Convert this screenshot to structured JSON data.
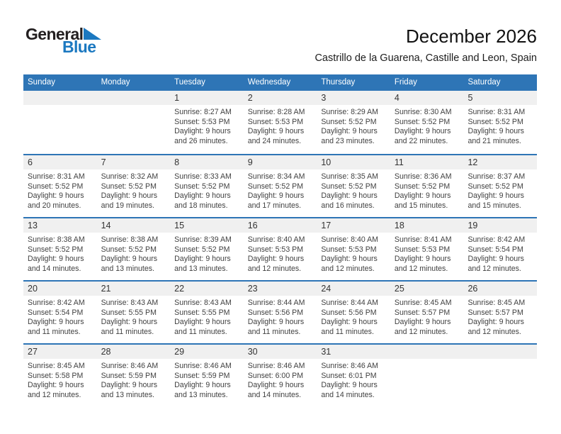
{
  "logo": {
    "part1": "General",
    "part2": "Blue",
    "triangle_color": "#1b78c0"
  },
  "header": {
    "title": "December 2026",
    "subtitle": "Castrillo de la Guarena, Castille and Leon, Spain"
  },
  "colors": {
    "header_bar": "#2e75b6",
    "row_border": "#2e75b6",
    "number_band": "#f0f0f0",
    "text": "#414141"
  },
  "calendar": {
    "weekdays": [
      "Sunday",
      "Monday",
      "Tuesday",
      "Wednesday",
      "Thursday",
      "Friday",
      "Saturday"
    ],
    "weeks": [
      [
        {
          "day": ""
        },
        {
          "day": ""
        },
        {
          "day": "1",
          "sunrise": "Sunrise: 8:27 AM",
          "sunset": "Sunset: 5:53 PM",
          "daylight": "Daylight: 9 hours and 26 minutes."
        },
        {
          "day": "2",
          "sunrise": "Sunrise: 8:28 AM",
          "sunset": "Sunset: 5:53 PM",
          "daylight": "Daylight: 9 hours and 24 minutes."
        },
        {
          "day": "3",
          "sunrise": "Sunrise: 8:29 AM",
          "sunset": "Sunset: 5:52 PM",
          "daylight": "Daylight: 9 hours and 23 minutes."
        },
        {
          "day": "4",
          "sunrise": "Sunrise: 8:30 AM",
          "sunset": "Sunset: 5:52 PM",
          "daylight": "Daylight: 9 hours and 22 minutes."
        },
        {
          "day": "5",
          "sunrise": "Sunrise: 8:31 AM",
          "sunset": "Sunset: 5:52 PM",
          "daylight": "Daylight: 9 hours and 21 minutes."
        }
      ],
      [
        {
          "day": "6",
          "sunrise": "Sunrise: 8:31 AM",
          "sunset": "Sunset: 5:52 PM",
          "daylight": "Daylight: 9 hours and 20 minutes."
        },
        {
          "day": "7",
          "sunrise": "Sunrise: 8:32 AM",
          "sunset": "Sunset: 5:52 PM",
          "daylight": "Daylight: 9 hours and 19 minutes."
        },
        {
          "day": "8",
          "sunrise": "Sunrise: 8:33 AM",
          "sunset": "Sunset: 5:52 PM",
          "daylight": "Daylight: 9 hours and 18 minutes."
        },
        {
          "day": "9",
          "sunrise": "Sunrise: 8:34 AM",
          "sunset": "Sunset: 5:52 PM",
          "daylight": "Daylight: 9 hours and 17 minutes."
        },
        {
          "day": "10",
          "sunrise": "Sunrise: 8:35 AM",
          "sunset": "Sunset: 5:52 PM",
          "daylight": "Daylight: 9 hours and 16 minutes."
        },
        {
          "day": "11",
          "sunrise": "Sunrise: 8:36 AM",
          "sunset": "Sunset: 5:52 PM",
          "daylight": "Daylight: 9 hours and 15 minutes."
        },
        {
          "day": "12",
          "sunrise": "Sunrise: 8:37 AM",
          "sunset": "Sunset: 5:52 PM",
          "daylight": "Daylight: 9 hours and 15 minutes."
        }
      ],
      [
        {
          "day": "13",
          "sunrise": "Sunrise: 8:38 AM",
          "sunset": "Sunset: 5:52 PM",
          "daylight": "Daylight: 9 hours and 14 minutes."
        },
        {
          "day": "14",
          "sunrise": "Sunrise: 8:38 AM",
          "sunset": "Sunset: 5:52 PM",
          "daylight": "Daylight: 9 hours and 13 minutes."
        },
        {
          "day": "15",
          "sunrise": "Sunrise: 8:39 AM",
          "sunset": "Sunset: 5:52 PM",
          "daylight": "Daylight: 9 hours and 13 minutes."
        },
        {
          "day": "16",
          "sunrise": "Sunrise: 8:40 AM",
          "sunset": "Sunset: 5:53 PM",
          "daylight": "Daylight: 9 hours and 12 minutes."
        },
        {
          "day": "17",
          "sunrise": "Sunrise: 8:40 AM",
          "sunset": "Sunset: 5:53 PM",
          "daylight": "Daylight: 9 hours and 12 minutes."
        },
        {
          "day": "18",
          "sunrise": "Sunrise: 8:41 AM",
          "sunset": "Sunset: 5:53 PM",
          "daylight": "Daylight: 9 hours and 12 minutes."
        },
        {
          "day": "19",
          "sunrise": "Sunrise: 8:42 AM",
          "sunset": "Sunset: 5:54 PM",
          "daylight": "Daylight: 9 hours and 12 minutes."
        }
      ],
      [
        {
          "day": "20",
          "sunrise": "Sunrise: 8:42 AM",
          "sunset": "Sunset: 5:54 PM",
          "daylight": "Daylight: 9 hours and 11 minutes."
        },
        {
          "day": "21",
          "sunrise": "Sunrise: 8:43 AM",
          "sunset": "Sunset: 5:55 PM",
          "daylight": "Daylight: 9 hours and 11 minutes."
        },
        {
          "day": "22",
          "sunrise": "Sunrise: 8:43 AM",
          "sunset": "Sunset: 5:55 PM",
          "daylight": "Daylight: 9 hours and 11 minutes."
        },
        {
          "day": "23",
          "sunrise": "Sunrise: 8:44 AM",
          "sunset": "Sunset: 5:56 PM",
          "daylight": "Daylight: 9 hours and 11 minutes."
        },
        {
          "day": "24",
          "sunrise": "Sunrise: 8:44 AM",
          "sunset": "Sunset: 5:56 PM",
          "daylight": "Daylight: 9 hours and 11 minutes."
        },
        {
          "day": "25",
          "sunrise": "Sunrise: 8:45 AM",
          "sunset": "Sunset: 5:57 PM",
          "daylight": "Daylight: 9 hours and 12 minutes."
        },
        {
          "day": "26",
          "sunrise": "Sunrise: 8:45 AM",
          "sunset": "Sunset: 5:57 PM",
          "daylight": "Daylight: 9 hours and 12 minutes."
        }
      ],
      [
        {
          "day": "27",
          "sunrise": "Sunrise: 8:45 AM",
          "sunset": "Sunset: 5:58 PM",
          "daylight": "Daylight: 9 hours and 12 minutes."
        },
        {
          "day": "28",
          "sunrise": "Sunrise: 8:46 AM",
          "sunset": "Sunset: 5:59 PM",
          "daylight": "Daylight: 9 hours and 13 minutes."
        },
        {
          "day": "29",
          "sunrise": "Sunrise: 8:46 AM",
          "sunset": "Sunset: 5:59 PM",
          "daylight": "Daylight: 9 hours and 13 minutes."
        },
        {
          "day": "30",
          "sunrise": "Sunrise: 8:46 AM",
          "sunset": "Sunset: 6:00 PM",
          "daylight": "Daylight: 9 hours and 14 minutes."
        },
        {
          "day": "31",
          "sunrise": "Sunrise: 8:46 AM",
          "sunset": "Sunset: 6:01 PM",
          "daylight": "Daylight: 9 hours and 14 minutes."
        },
        {
          "day": ""
        },
        {
          "day": ""
        }
      ]
    ]
  }
}
